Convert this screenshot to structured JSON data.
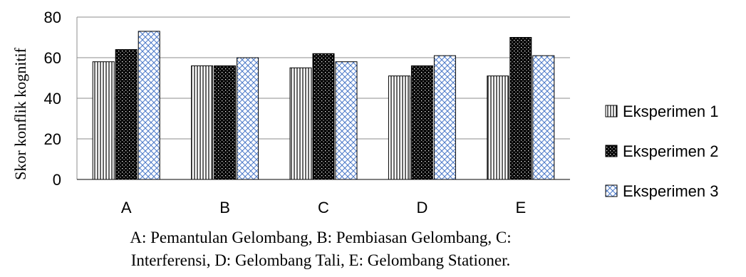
{
  "chart_data": {
    "type": "bar",
    "categories": [
      "A",
      "B",
      "C",
      "D",
      "E"
    ],
    "series": [
      {
        "name": "Eksperimen 1",
        "values": [
          58,
          56,
          55,
          51,
          51
        ],
        "pattern": "vertical-lines"
      },
      {
        "name": "Eksperimen 2",
        "values": [
          64,
          56,
          62,
          56,
          70
        ],
        "pattern": "dots-on-black"
      },
      {
        "name": "Eksperimen 3",
        "values": [
          73,
          60,
          58,
          61,
          61
        ],
        "pattern": "blue-crosshatch"
      }
    ],
    "xlabel": "",
    "ylabel": "Skor konflik kognitif",
    "ylim": [
      0,
      80
    ],
    "yticks": [
      0,
      20,
      40,
      60,
      80
    ],
    "grid": "horizontal",
    "legend_position": "right"
  },
  "caption": {
    "line1": "A: Pemantulan Gelombang, B: Pembiasan Gelombang, C:",
    "line2": "Interferensi, D: Gelombang Tali, E: Gelombang Stationer."
  },
  "colors": {
    "grid": "#8c8c8c",
    "bar_outline": "#000000",
    "hatch_blue": "#4a78c8"
  }
}
